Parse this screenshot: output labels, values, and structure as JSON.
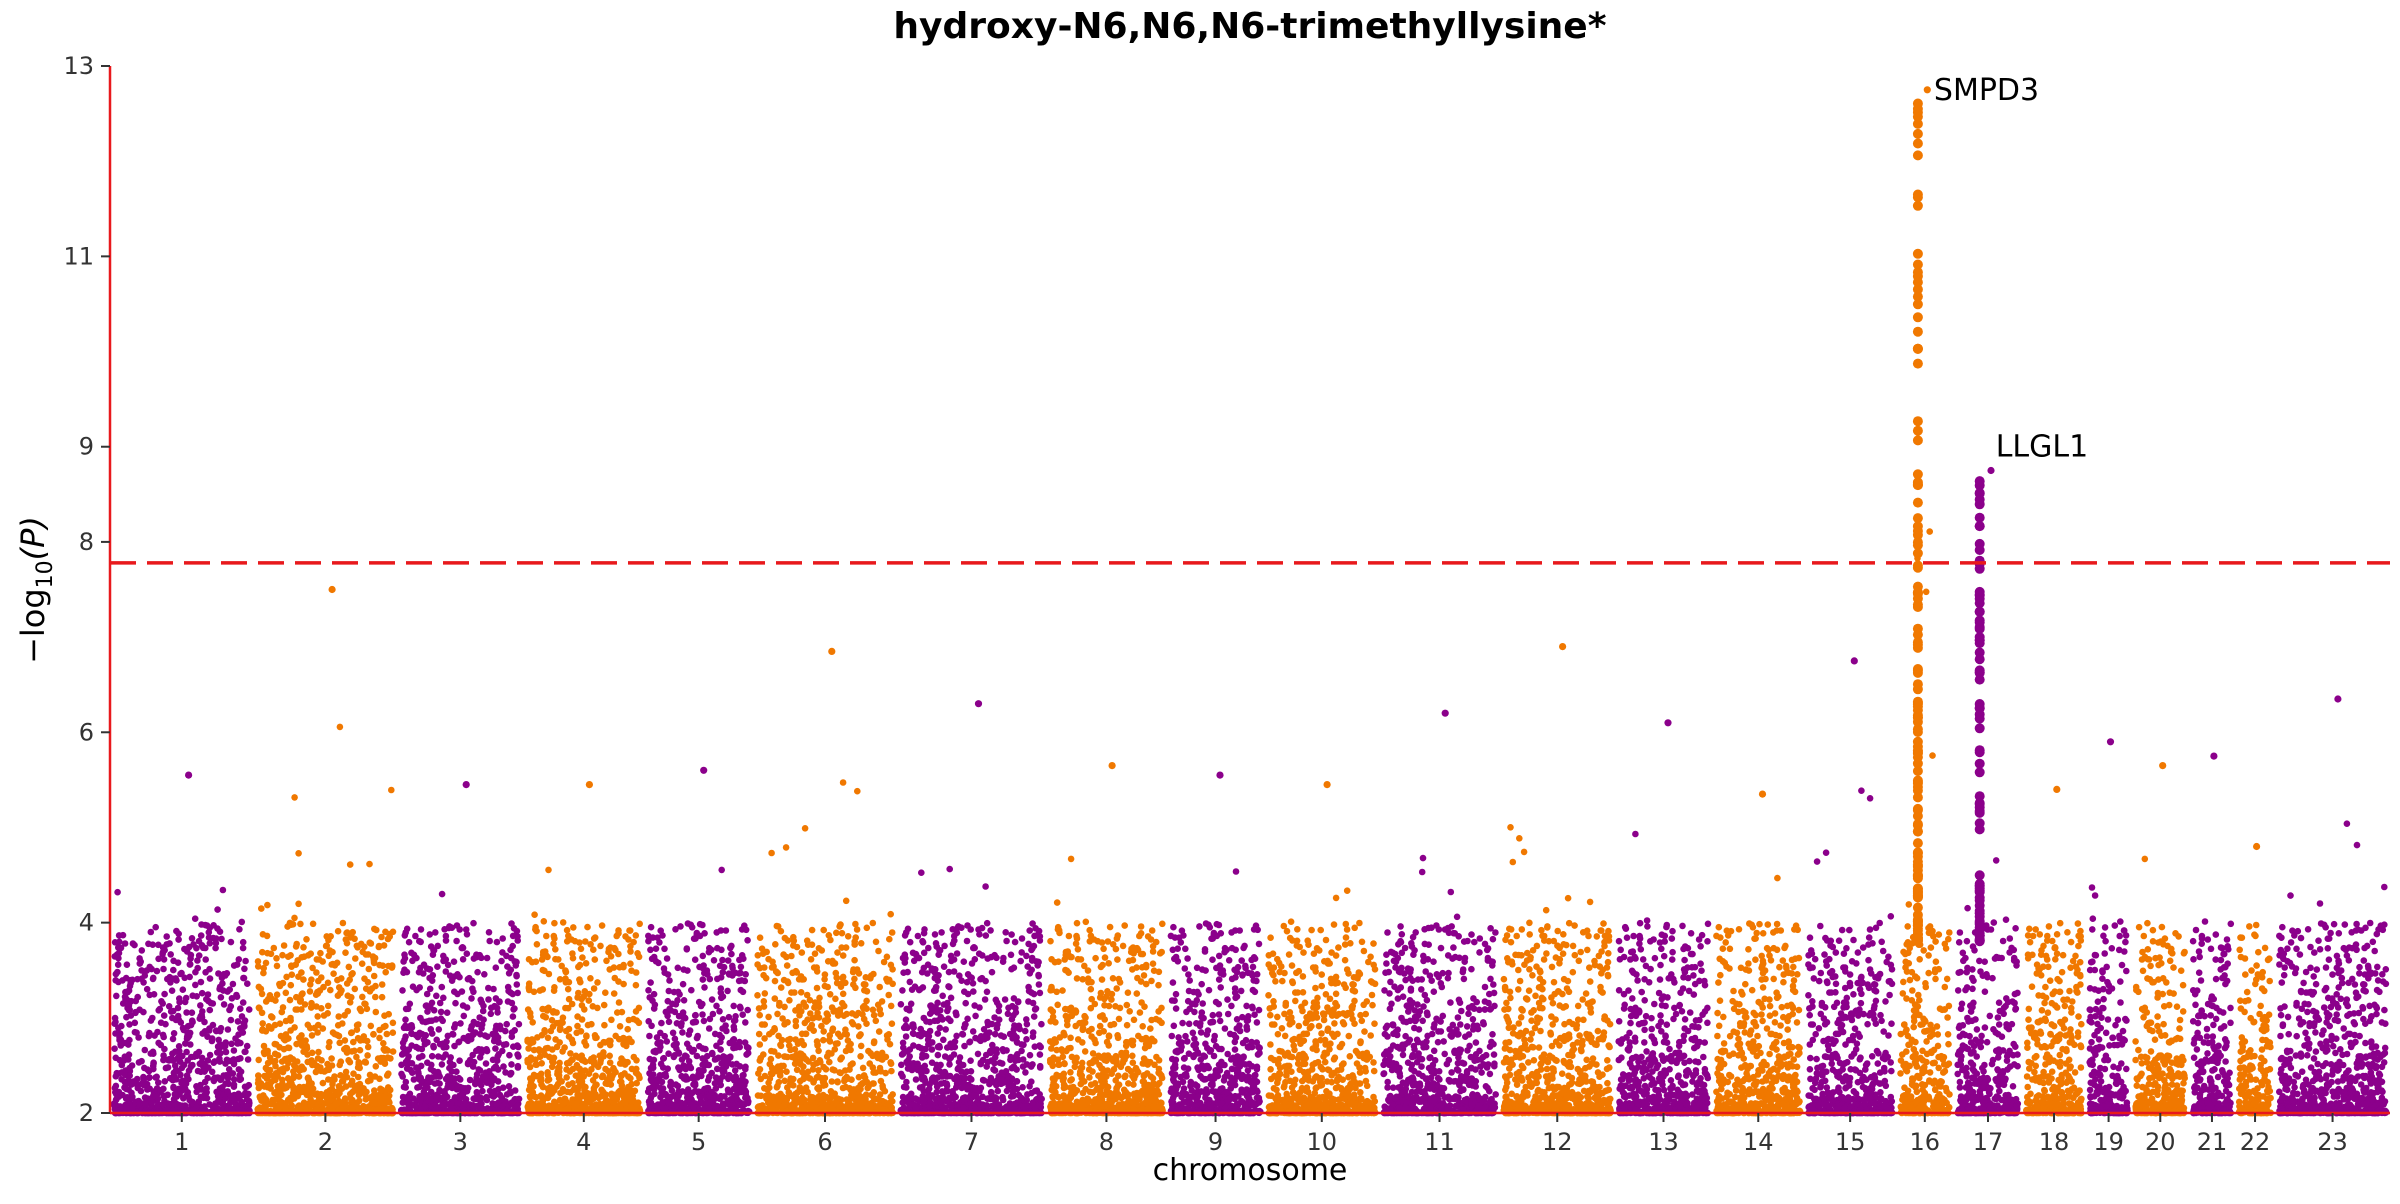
{
  "chart_data": {
    "type": "scatter",
    "subtype": "manhattan",
    "title": "hydroxy-N6,N6,N6-trimethyllysine*",
    "xlabel": "chromosome",
    "ylabel": "−log",
    "ylabel_subscript": "10",
    "ylabel_arg": "(P)",
    "ylim": [
      2,
      13
    ],
    "yticks": [
      2,
      4,
      6,
      8,
      9,
      11,
      13
    ],
    "significance_threshold": 7.78,
    "threshold_color": "#e8191c",
    "axis_color": "#e8191c",
    "colors": {
      "odd": "#8b008b",
      "even": "#f07800"
    },
    "grid": false,
    "chromosomes": [
      {
        "label": "1",
        "x": [
          0.0,
          0.25
        ],
        "peak": 5.55
      },
      {
        "label": "2",
        "x": [
          0.25,
          0.5
        ],
        "peak": 7.5
      },
      {
        "label": "3",
        "x": [
          0.5,
          0.72
        ],
        "peak": 5.45
      },
      {
        "label": "4",
        "x": [
          0.72,
          0.93
        ],
        "peak": 5.45
      },
      {
        "label": "5",
        "x": [
          0.93,
          1.12
        ],
        "peak": 5.6
      },
      {
        "label": "6",
        "x": [
          1.12,
          1.37
        ],
        "peak": 6.85
      },
      {
        "label": "7",
        "x": [
          1.37,
          1.63
        ],
        "peak": 6.3
      },
      {
        "label": "8",
        "x": [
          1.63,
          1.84
        ],
        "peak": 5.65
      },
      {
        "label": "9",
        "x": [
          1.84,
          2.01
        ],
        "peak": 5.55
      },
      {
        "label": "10",
        "x": [
          2.01,
          2.21
        ],
        "peak": 5.45
      },
      {
        "label": "11",
        "x": [
          2.21,
          2.42
        ],
        "peak": 6.2
      },
      {
        "label": "12",
        "x": [
          2.42,
          2.62
        ],
        "peak": 6.9
      },
      {
        "label": "13",
        "x": [
          2.62,
          2.79
        ],
        "peak": 6.1
      },
      {
        "label": "14",
        "x": [
          2.79,
          2.95
        ],
        "peak": 5.35
      },
      {
        "label": "15",
        "x": [
          2.95,
          3.11
        ],
        "peak": 6.75
      },
      {
        "label": "16",
        "x": [
          3.11,
          3.21
        ],
        "peak": 12.75
      },
      {
        "label": "17",
        "x": [
          3.21,
          3.33
        ],
        "peak": 8.75
      },
      {
        "label": "18",
        "x": [
          3.33,
          3.44
        ],
        "peak": 5.4
      },
      {
        "label": "19",
        "x": [
          3.44,
          3.52
        ],
        "peak": 5.9
      },
      {
        "label": "20",
        "x": [
          3.52,
          3.62
        ],
        "peak": 5.65
      },
      {
        "label": "21",
        "x": [
          3.62,
          3.7
        ],
        "peak": 5.75
      },
      {
        "label": "22",
        "x": [
          3.7,
          3.77
        ],
        "peak": 4.8
      },
      {
        "label": "23",
        "x": [
          3.77,
          3.97
        ],
        "peak": 6.35
      }
    ],
    "annotations": [
      {
        "text": "SMPD3",
        "chrom": "16",
        "y": 12.75
      },
      {
        "text": "LLGL1",
        "chrom": "17",
        "y": 9.0
      }
    ]
  }
}
